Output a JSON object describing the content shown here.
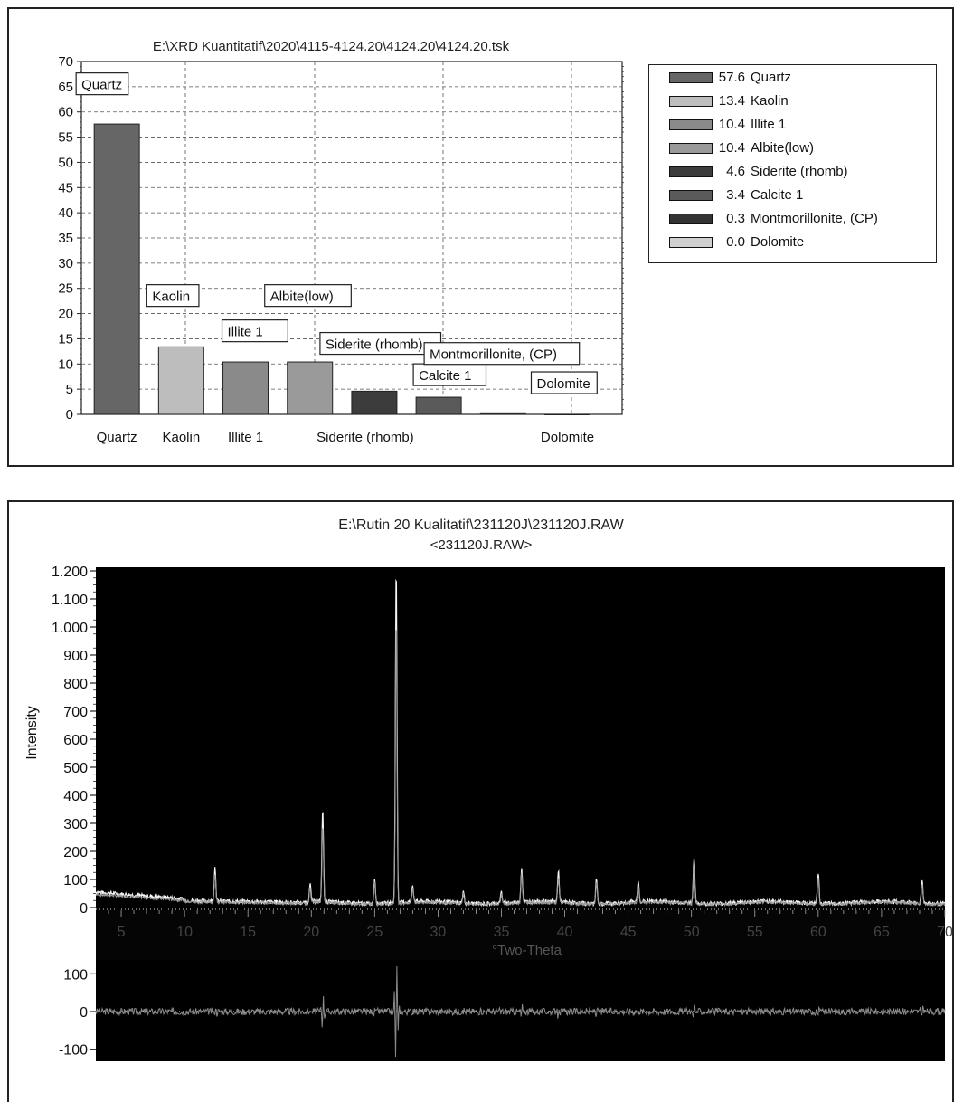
{
  "chart_data": [
    {
      "type": "bar",
      "title": "E:\\XRD Kuantitatif\\2020\\4115-4124.20\\4124.20\\4124.20.tsk",
      "categories": [
        "Quartz",
        "Kaolin",
        "Illite 1",
        "Albite(low)",
        "Siderite (rhomb)",
        "Calcite 1",
        "Montmorillonite, (CP)",
        "Dolomite"
      ],
      "values": [
        57.6,
        13.4,
        10.4,
        10.4,
        4.6,
        3.4,
        0.3,
        0.0
      ],
      "bar_labels": [
        "Quartz",
        "Kaolin",
        "Illite 1",
        "Albite(low)",
        "Siderite (rhomb)",
        "Calcite 1",
        "Montmorillonite, (CP)",
        "Dolomite"
      ],
      "x_tick_labels": [
        "Quartz",
        "Kaolin",
        "Illite 1",
        "",
        "Siderite (rhomb)",
        "",
        "",
        "Dolomite"
      ],
      "ylim": [
        0,
        70
      ],
      "yticks": [
        0,
        5,
        10,
        15,
        20,
        25,
        30,
        35,
        40,
        45,
        50,
        55,
        60,
        65,
        70
      ],
      "grid": true,
      "legend_position": "right",
      "legend": [
        {
          "value": "57.6",
          "name": "Quartz",
          "color": "#666666"
        },
        {
          "value": "13.4",
          "name": "Kaolin",
          "color": "#bdbdbd"
        },
        {
          "value": "10.4",
          "name": "Illite 1",
          "color": "#8a8a8a"
        },
        {
          "value": "10.4",
          "name": "Albite(low)",
          "color": "#9a9a9a"
        },
        {
          "value": "4.6",
          "name": "Siderite (rhomb)",
          "color": "#3c3c3c"
        },
        {
          "value": "3.4",
          "name": "Calcite 1",
          "color": "#5a5a5a"
        },
        {
          "value": "0.3",
          "name": "Montmorillonite, (CP)",
          "color": "#333333"
        },
        {
          "value": "0.0",
          "name": "Dolomite",
          "color": "#d0d0d0"
        }
      ]
    },
    {
      "type": "line",
      "title": "E:\\Rutin 20 Kualitatif\\231120J\\231120J.RAW",
      "subtitle": "<231120J.RAW>",
      "xlabel": "°Two-Theta",
      "ylabel": "Intensity",
      "xlim": [
        3,
        70
      ],
      "ylim": [
        0,
        1200
      ],
      "xticks": [
        5,
        10,
        15,
        20,
        25,
        30,
        35,
        40,
        45,
        50,
        55,
        60,
        65,
        70
      ],
      "yticks": [
        0,
        100,
        200,
        300,
        400,
        500,
        600,
        700,
        800,
        900,
        1000,
        1100,
        1200
      ],
      "ytick_labels": [
        "0",
        "100",
        "200",
        "300",
        "400",
        "500",
        "600",
        "700",
        "800",
        "900",
        "1.000",
        "1.100",
        "1.200"
      ],
      "background": "#000000",
      "peaks": [
        {
          "x": 12.4,
          "y": 120
        },
        {
          "x": 20.9,
          "y": 330
        },
        {
          "x": 26.7,
          "y": 1200
        },
        {
          "x": 19.9,
          "y": 70
        },
        {
          "x": 25.0,
          "y": 90
        },
        {
          "x": 28.0,
          "y": 60
        },
        {
          "x": 36.6,
          "y": 120
        },
        {
          "x": 39.5,
          "y": 110
        },
        {
          "x": 42.5,
          "y": 90
        },
        {
          "x": 45.8,
          "y": 70
        },
        {
          "x": 50.2,
          "y": 160
        },
        {
          "x": 60.0,
          "y": 110
        },
        {
          "x": 68.2,
          "y": 80
        },
        {
          "x": 32.0,
          "y": 40
        },
        {
          "x": 35.0,
          "y": 40
        }
      ],
      "difference_plot": {
        "ylim": [
          -120,
          120
        ],
        "yticks": [
          -100,
          0,
          100
        ],
        "ytick_labels": [
          "-100",
          "0",
          "100"
        ]
      }
    }
  ]
}
